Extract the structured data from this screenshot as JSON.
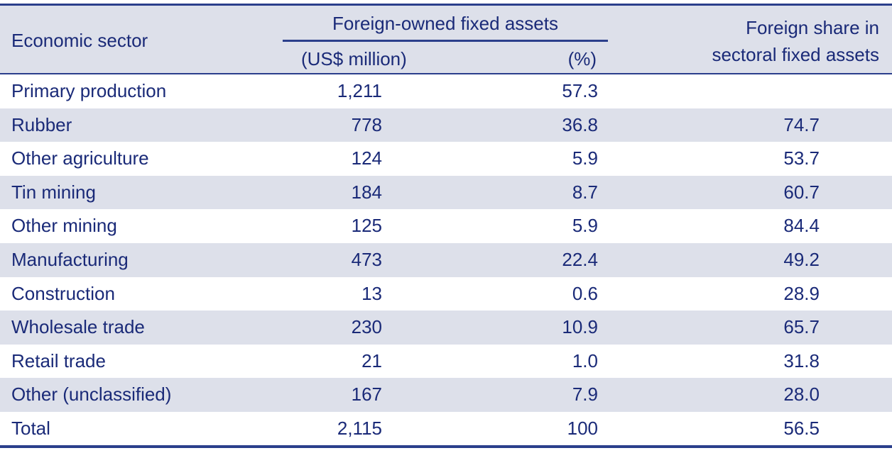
{
  "header": {
    "sector": "Economic sector",
    "group": "Foreign-owned fixed assets",
    "usd": "(US$ million)",
    "pct": "(%)",
    "share_line1": "Foreign share in",
    "share_line2": "sectoral fixed assets"
  },
  "rows": [
    {
      "sector": "Primary production",
      "usd": "1,211",
      "pct": "57.3",
      "share": ""
    },
    {
      "sector": "Rubber",
      "usd": "778",
      "pct": "36.8",
      "share": "74.7"
    },
    {
      "sector": "Other agriculture",
      "usd": "124",
      "pct": "5.9",
      "share": "53.7"
    },
    {
      "sector": "Tin mining",
      "usd": "184",
      "pct": "8.7",
      "share": "60.7"
    },
    {
      "sector": "Other mining",
      "usd": "125",
      "pct": "5.9",
      "share": "84.4"
    },
    {
      "sector": "Manufacturing",
      "usd": "473",
      "pct": "22.4",
      "share": "49.2"
    },
    {
      "sector": "Construction",
      "usd": "13",
      "pct": "0.6",
      "share": "28.9"
    },
    {
      "sector": "Wholesale trade",
      "usd": "230",
      "pct": "10.9",
      "share": "65.7"
    },
    {
      "sector": "Retail trade",
      "usd": "21",
      "pct": "1.0",
      "share": "31.8"
    },
    {
      "sector": "Other (unclassified)",
      "usd": "167",
      "pct": "7.9",
      "share": "28.0"
    },
    {
      "sector": "Total",
      "usd": "2,115",
      "pct": "100",
      "share": "56.5"
    }
  ],
  "colors": {
    "text": "#1a2a78",
    "rule": "#2b3f8c",
    "shade": "#dde0ea"
  }
}
